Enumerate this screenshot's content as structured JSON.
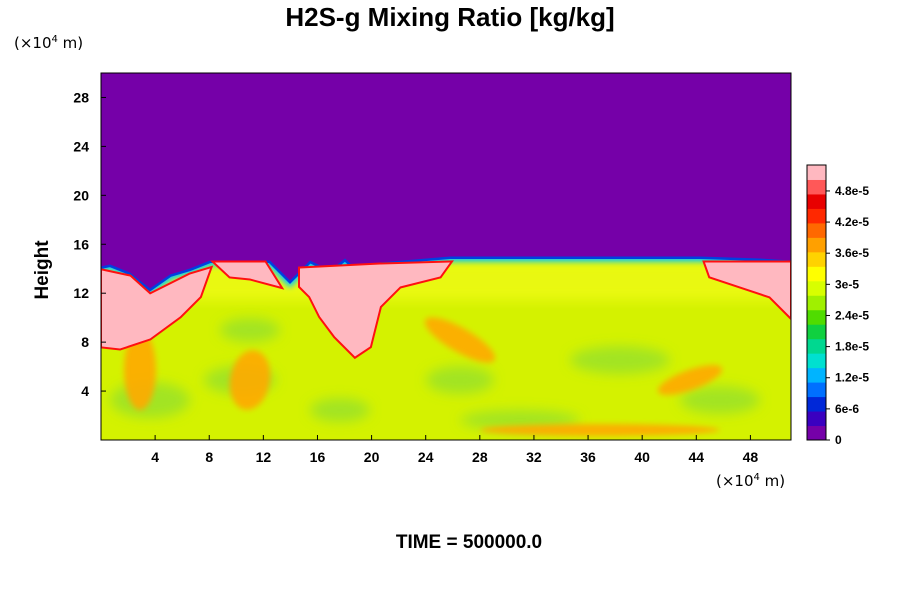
{
  "chart_data": {
    "type": "heatmap",
    "title": "H2S-g Mixing Ratio [kg/kg]",
    "ylabel": "Height",
    "y_unit": {
      "prefix": "(×10",
      "exp": "4",
      "suffix": " m)"
    },
    "x_unit": {
      "prefix": "(×10",
      "exp": "4",
      "suffix": " m)"
    },
    "time_label": "TIME = 500000.0",
    "xlim": [
      0,
      51
    ],
    "ylim": [
      0,
      30
    ],
    "x_ticks": [
      4,
      8,
      12,
      16,
      20,
      24,
      28,
      32,
      36,
      40,
      44,
      48
    ],
    "x_tick_labels": [
      "4",
      "8",
      "12",
      "16",
      "20",
      "24",
      "28",
      "32",
      "36",
      "40",
      "44",
      "48"
    ],
    "y_ticks": [
      4,
      8,
      12,
      16,
      20,
      24,
      28
    ],
    "y_tick_labels": [
      "4",
      "8",
      "12",
      "16",
      "20",
      "24",
      "28"
    ],
    "colorbar": {
      "min": 0,
      "max": 5.3e-05,
      "ticks": [
        0,
        6e-06,
        1.2e-05,
        1.8e-05,
        2.4e-05,
        3e-05,
        3.6e-05,
        4.2e-05,
        4.8e-05
      ],
      "tick_labels": [
        "0",
        "6e-6",
        "1.2e-5",
        "1.8e-5",
        "2.4e-5",
        "3e-5",
        "3.6e-5",
        "4.2e-5",
        "4.8e-5"
      ],
      "colors": [
        "#7500a8",
        "#3a00c0",
        "#0028d8",
        "#0070ff",
        "#00b4ff",
        "#00e0d0",
        "#00d890",
        "#10d040",
        "#50dc00",
        "#a0f000",
        "#d8ff00",
        "#ffff00",
        "#ffd200",
        "#ffa000",
        "#ff6800",
        "#ff2800",
        "#e80000",
        "#ff5858",
        "#ffb8c0"
      ]
    },
    "field_description_values": {
      "upper_layer_value": 0,
      "upper_layer_bottom_height": 15,
      "background_lower_value": 3.5e-05,
      "pink_region_value": 5.3e-05
    }
  }
}
